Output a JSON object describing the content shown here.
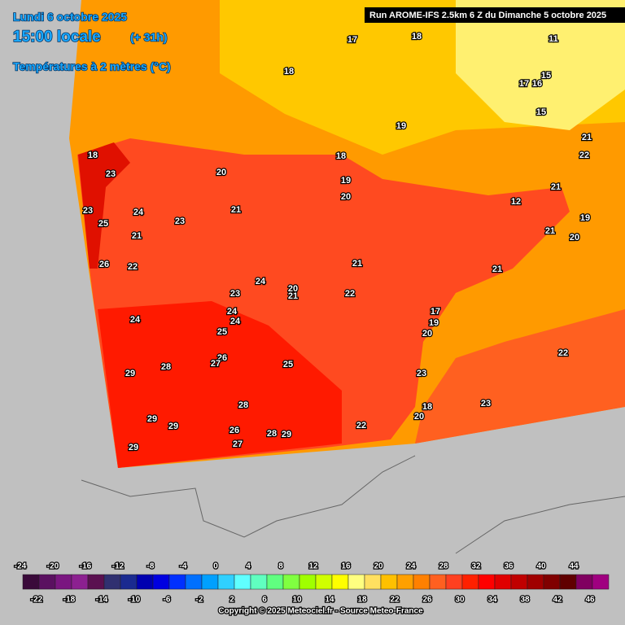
{
  "header": {
    "date": "Lundi 6 octobre 2025",
    "time": "15:00 locale",
    "lead": "(+ 31h)",
    "variable": "Températures à 2 mètres (°C)",
    "run": "Run AROME-IFS 2.5km 6 Z du Dimanche 5 octobre 2025"
  },
  "map_labels": [
    17,
    18,
    18,
    19,
    18,
    23,
    18,
    20,
    19,
    20,
    23,
    25,
    24,
    21,
    23,
    21,
    21,
    21,
    22,
    19,
    20,
    21,
    26,
    22,
    21,
    21,
    24,
    20,
    21,
    23,
    22,
    24,
    24,
    24,
    17,
    19,
    20,
    25,
    22,
    26,
    27,
    28,
    29,
    25,
    23,
    23,
    28,
    18,
    20,
    29,
    29,
    22,
    26,
    28,
    29,
    27,
    29,
    11,
    15,
    16,
    17,
    15,
    12
  ],
  "colorbar": {
    "ticks": [
      -24,
      -22,
      -20,
      -18,
      -16,
      -14,
      -12,
      -10,
      -8,
      -6,
      -4,
      -2,
      0,
      2,
      4,
      6,
      8,
      10,
      12,
      14,
      16,
      18,
      20,
      22,
      24,
      26,
      28,
      30,
      32,
      34,
      36,
      38,
      40,
      42,
      44,
      46
    ],
    "colors": [
      "#3a0a3a",
      "#5a1060",
      "#7a1680",
      "#8c2090",
      "#5a1050",
      "#303070",
      "#1a2a90",
      "#0000b0",
      "#0000e0",
      "#0030ff",
      "#0070ff",
      "#00a0ff",
      "#30d0ff",
      "#60ffff",
      "#60ffc0",
      "#60ff80",
      "#80ff40",
      "#a0ff00",
      "#d0ff00",
      "#ffff00",
      "#ffff80",
      "#ffe060",
      "#ffc000",
      "#ffa000",
      "#ff8000",
      "#ff6020",
      "#ff4020",
      "#ff2000",
      "#ff0000",
      "#e00000",
      "#c00000",
      "#a00000",
      "#800000",
      "#600000",
      "#800060",
      "#a00080"
    ]
  },
  "footer": "Copyright © 2025 Meteociel.fr - Source Meteo-France"
}
